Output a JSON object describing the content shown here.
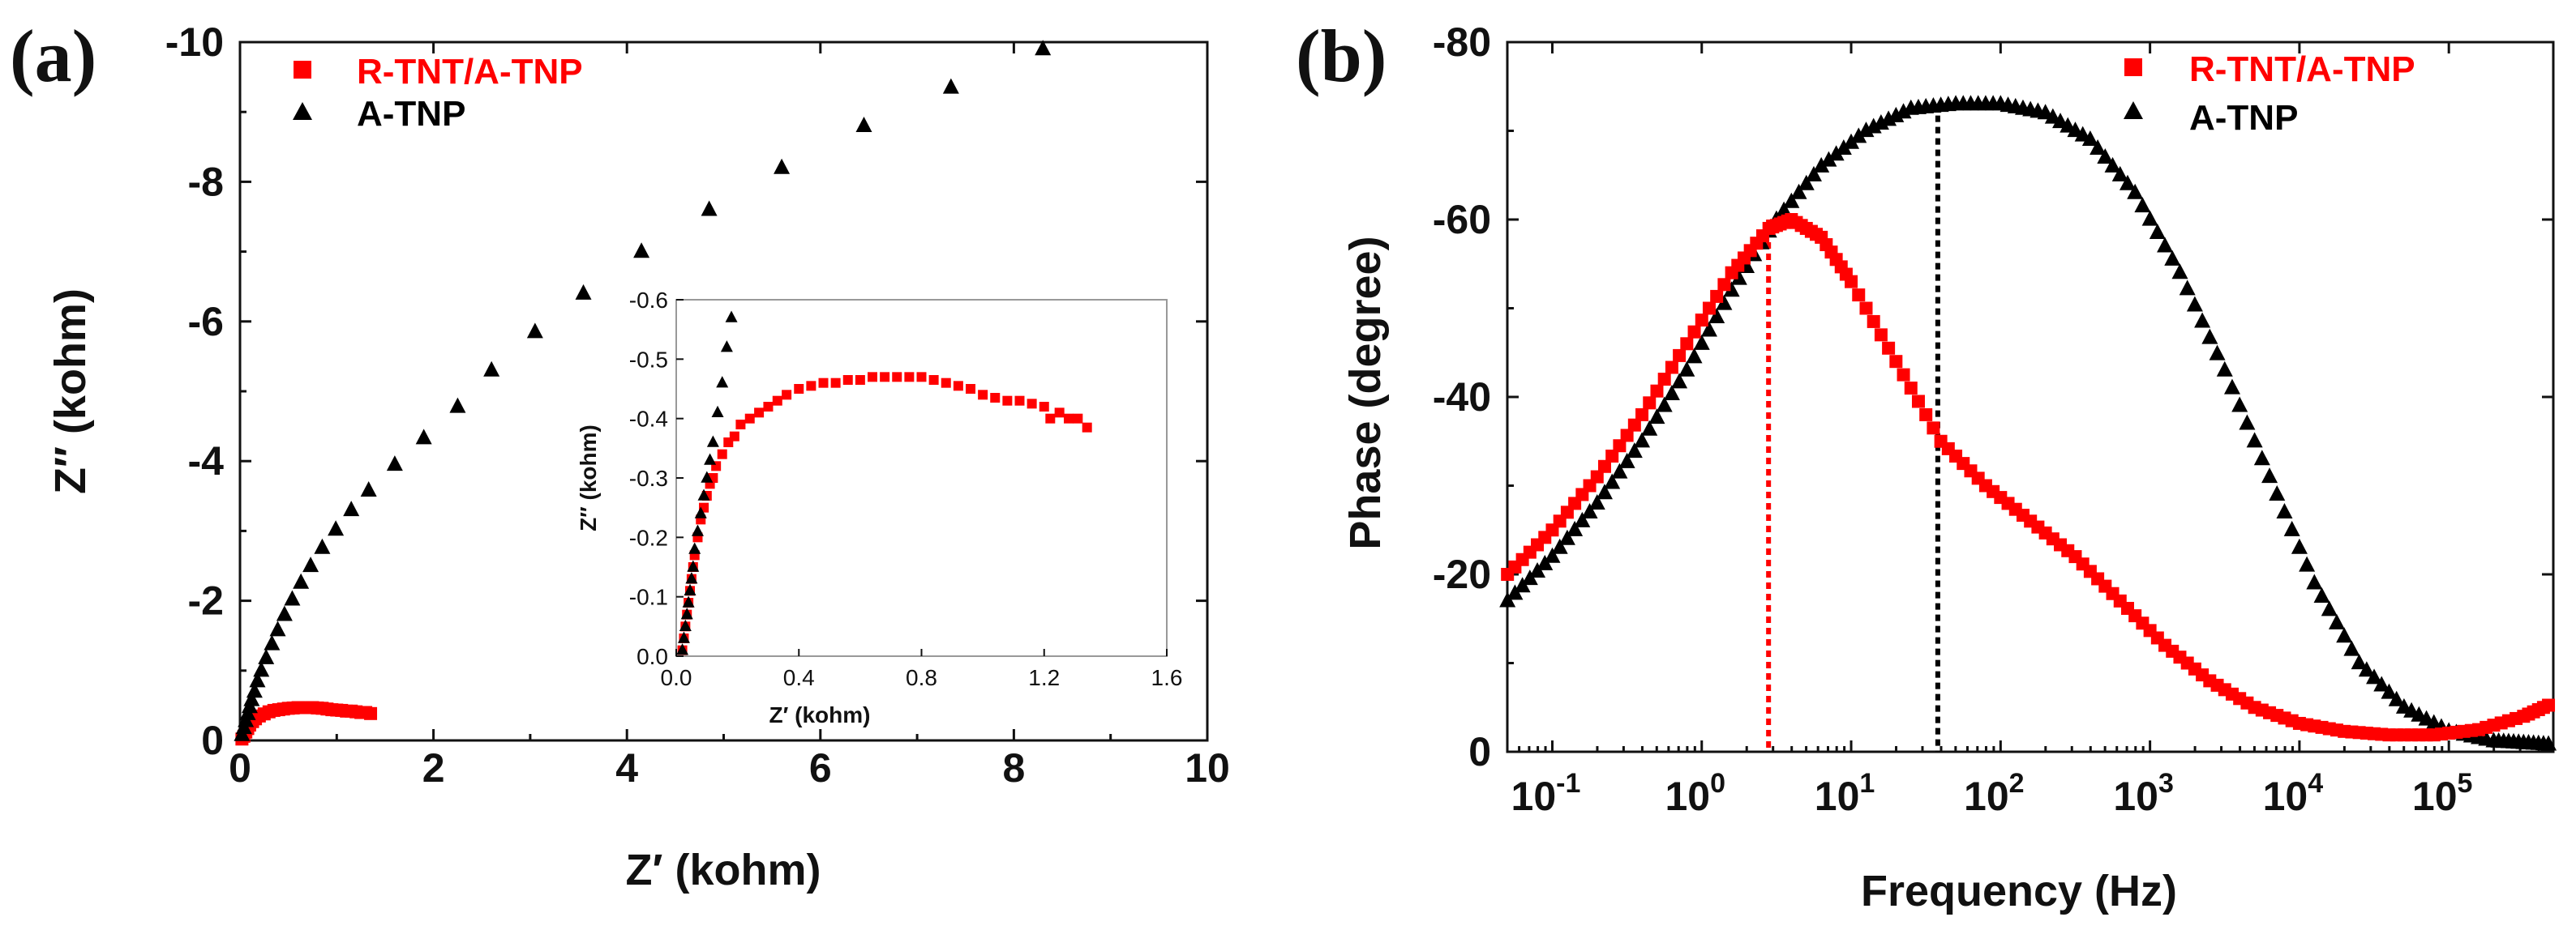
{
  "chart_data": [
    {
      "id": "a",
      "panel_label": "(a)",
      "type": "scatter",
      "xlabel": "Z′ (kohm)",
      "ylabel": "Z′′ (kohm)",
      "xlim": [
        0,
        10
      ],
      "ylim": [
        0,
        -10
      ],
      "xticks": [
        0,
        2,
        4,
        6,
        8,
        10
      ],
      "xtick_labels": [
        "0",
        "2",
        "4",
        "6",
        "8",
        "10"
      ],
      "yticks": [
        0,
        -2,
        -4,
        -6,
        -8,
        -10
      ],
      "ytick_labels": [
        "0",
        "-2",
        "-4",
        "-6",
        "-8",
        "-10"
      ],
      "legend_position": "top-left",
      "series": [
        {
          "name": "R-TNT/A-TNP",
          "color": "#ff0000",
          "marker": "square",
          "x": [
            0.02,
            0.04,
            0.06,
            0.08,
            0.1,
            0.13,
            0.16,
            0.2,
            0.25,
            0.3,
            0.35,
            0.4,
            0.45,
            0.5,
            0.55,
            0.6,
            0.65,
            0.7,
            0.75,
            0.8,
            0.85,
            0.9,
            0.95,
            1.0,
            1.05,
            1.1,
            1.15,
            1.2,
            1.25,
            1.3,
            1.35
          ],
          "y": [
            -0.02,
            -0.06,
            -0.12,
            -0.17,
            -0.22,
            -0.27,
            -0.31,
            -0.35,
            -0.38,
            -0.41,
            -0.43,
            -0.44,
            -0.45,
            -0.46,
            -0.465,
            -0.47,
            -0.47,
            -0.47,
            -0.47,
            -0.465,
            -0.46,
            -0.45,
            -0.44,
            -0.435,
            -0.43,
            -0.42,
            -0.42,
            -0.41,
            -0.4,
            -0.4,
            -0.385
          ]
        },
        {
          "name": "A-TNP",
          "color": "#000000",
          "marker": "triangle",
          "x": [
            0.02,
            0.04,
            0.06,
            0.08,
            0.1,
            0.12,
            0.15,
            0.18,
            0.22,
            0.27,
            0.33,
            0.39,
            0.46,
            0.54,
            0.63,
            0.73,
            0.85,
            0.99,
            1.15,
            1.33,
            1.6,
            1.9,
            2.25,
            2.6,
            3.05,
            3.55,
            4.15,
            4.85,
            5.6,
            6.45,
            7.35,
            8.3
          ],
          "y": [
            -0.08,
            -0.18,
            -0.28,
            -0.38,
            -0.48,
            -0.58,
            -0.7,
            -0.85,
            -1.0,
            -1.18,
            -1.38,
            -1.58,
            -1.8,
            -2.02,
            -2.26,
            -2.5,
            -2.76,
            -3.02,
            -3.3,
            -3.58,
            -3.95,
            -4.33,
            -4.78,
            -5.3,
            -5.85,
            -6.4,
            -7.0,
            -7.6,
            -8.2,
            -8.8,
            -9.35,
            -9.9
          ]
        }
      ],
      "inset": {
        "xlabel": "Z′ (kohm)",
        "ylabel": "Z′′ (kohm)",
        "xlim": [
          0,
          1.6
        ],
        "ylim": [
          0,
          -0.6
        ],
        "xticks": [
          0,
          0.4,
          0.8,
          1.2,
          1.6
        ],
        "xtick_labels": [
          "0.0",
          "0.4",
          "0.8",
          "1.2",
          "1.6"
        ],
        "yticks": [
          0,
          -0.1,
          -0.2,
          -0.3,
          -0.4,
          -0.5,
          -0.6
        ],
        "ytick_labels": [
          "0.0",
          "-0.1",
          "-0.2",
          "-0.3",
          "-0.4",
          "-0.5",
          "-0.6"
        ],
        "series": [
          {
            "name": "R-TNT/A-TNP",
            "color": "#ff0000",
            "marker": "square",
            "x": [
              0.02,
              0.025,
              0.03,
              0.035,
              0.04,
              0.045,
              0.05,
              0.055,
              0.06,
              0.07,
              0.08,
              0.09,
              0.1,
              0.11,
              0.12,
              0.13,
              0.15,
              0.17,
              0.19,
              0.21,
              0.24,
              0.27,
              0.3,
              0.33,
              0.36,
              0.4,
              0.44,
              0.48,
              0.52,
              0.56,
              0.6,
              0.64,
              0.68,
              0.72,
              0.76,
              0.8,
              0.84,
              0.88,
              0.92,
              0.96,
              1.0,
              1.04,
              1.08,
              1.12,
              1.16,
              1.2,
              1.22,
              1.25,
              1.28,
              1.31,
              1.34
            ],
            "y": [
              -0.01,
              -0.03,
              -0.05,
              -0.07,
              -0.09,
              -0.11,
              -0.13,
              -0.15,
              -0.17,
              -0.2,
              -0.23,
              -0.25,
              -0.27,
              -0.29,
              -0.3,
              -0.32,
              -0.34,
              -0.36,
              -0.37,
              -0.39,
              -0.4,
              -0.41,
              -0.42,
              -0.43,
              -0.44,
              -0.45,
              -0.455,
              -0.46,
              -0.46,
              -0.465,
              -0.465,
              -0.47,
              -0.47,
              -0.47,
              -0.47,
              -0.47,
              -0.465,
              -0.46,
              -0.455,
              -0.45,
              -0.44,
              -0.435,
              -0.43,
              -0.43,
              -0.425,
              -0.42,
              -0.4,
              -0.41,
              -0.4,
              -0.4,
              -0.385
            ]
          },
          {
            "name": "A-TNP",
            "color": "#000000",
            "marker": "triangle",
            "x": [
              0.02,
              0.025,
              0.03,
              0.035,
              0.04,
              0.045,
              0.05,
              0.055,
              0.06,
              0.07,
              0.08,
              0.09,
              0.1,
              0.11,
              0.12,
              0.135,
              0.15,
              0.165,
              0.18
            ],
            "y": [
              -0.01,
              -0.03,
              -0.05,
              -0.07,
              -0.09,
              -0.11,
              -0.13,
              -0.15,
              -0.18,
              -0.21,
              -0.24,
              -0.27,
              -0.3,
              -0.33,
              -0.36,
              -0.41,
              -0.46,
              -0.52,
              -0.57
            ]
          }
        ]
      }
    },
    {
      "id": "b",
      "panel_label": "(b)",
      "type": "scatter",
      "xscale": "log",
      "xlabel": "Frequency (Hz)",
      "ylabel": "Phase (degree)",
      "xlim": [
        0.05,
        500000
      ],
      "ylim": [
        0,
        -80
      ],
      "xtick_exponents": [
        "-1",
        "0",
        "1",
        "2",
        "3",
        "4",
        "5"
      ],
      "xtick_base": "10",
      "yticks": [
        0,
        -20,
        -40,
        -60,
        -80
      ],
      "ytick_labels": [
        "0",
        "-20",
        "-40",
        "-60",
        "-80"
      ],
      "legend_position": "top-right",
      "peak_markers": [
        {
          "series": "R-TNT/A-TNP",
          "frequency": 2.8,
          "phase": -60,
          "color": "#ff0000"
        },
        {
          "series": "A-TNP",
          "frequency": 38,
          "phase": -73,
          "color": "#000000"
        }
      ],
      "series": [
        {
          "name": "R-TNT/A-TNP",
          "color": "#ff0000",
          "marker": "square",
          "log10_frequency": [
            -1.3,
            -1.0,
            -0.7,
            -0.4,
            -0.1,
            0.2,
            0.45,
            0.6,
            0.8,
            1.0,
            1.3,
            1.6,
            1.9,
            2.2,
            2.5,
            2.8,
            3.1,
            3.4,
            3.7,
            4.0,
            4.3,
            4.6,
            4.9,
            5.2,
            5.5,
            5.7
          ],
          "phase": [
            -20,
            -25,
            -31,
            -38,
            -46,
            -54,
            -59,
            -60,
            -58,
            -53,
            -44,
            -35,
            -30,
            -26,
            -22,
            -17,
            -12,
            -8,
            -5,
            -3.2,
            -2.3,
            -1.9,
            -1.9,
            -2.5,
            -4,
            -5.5
          ]
        },
        {
          "name": "A-TNP",
          "color": "#000000",
          "marker": "triangle",
          "log10_frequency": [
            -1.3,
            -1.0,
            -0.7,
            -0.4,
            -0.1,
            0.2,
            0.5,
            0.8,
            1.1,
            1.4,
            1.7,
            2.0,
            2.3,
            2.6,
            2.9,
            3.2,
            3.5,
            3.8,
            4.1,
            4.4,
            4.7,
            5.0,
            5.3,
            5.5,
            5.7
          ],
          "phase": [
            -17,
            -22,
            -28,
            -35,
            -43,
            -52,
            -60,
            -66,
            -70,
            -72.5,
            -73,
            -73,
            -72,
            -69,
            -63,
            -54,
            -43,
            -31,
            -19,
            -10,
            -5,
            -2.3,
            -1.2,
            -1.0,
            -0.8
          ]
        }
      ]
    }
  ]
}
